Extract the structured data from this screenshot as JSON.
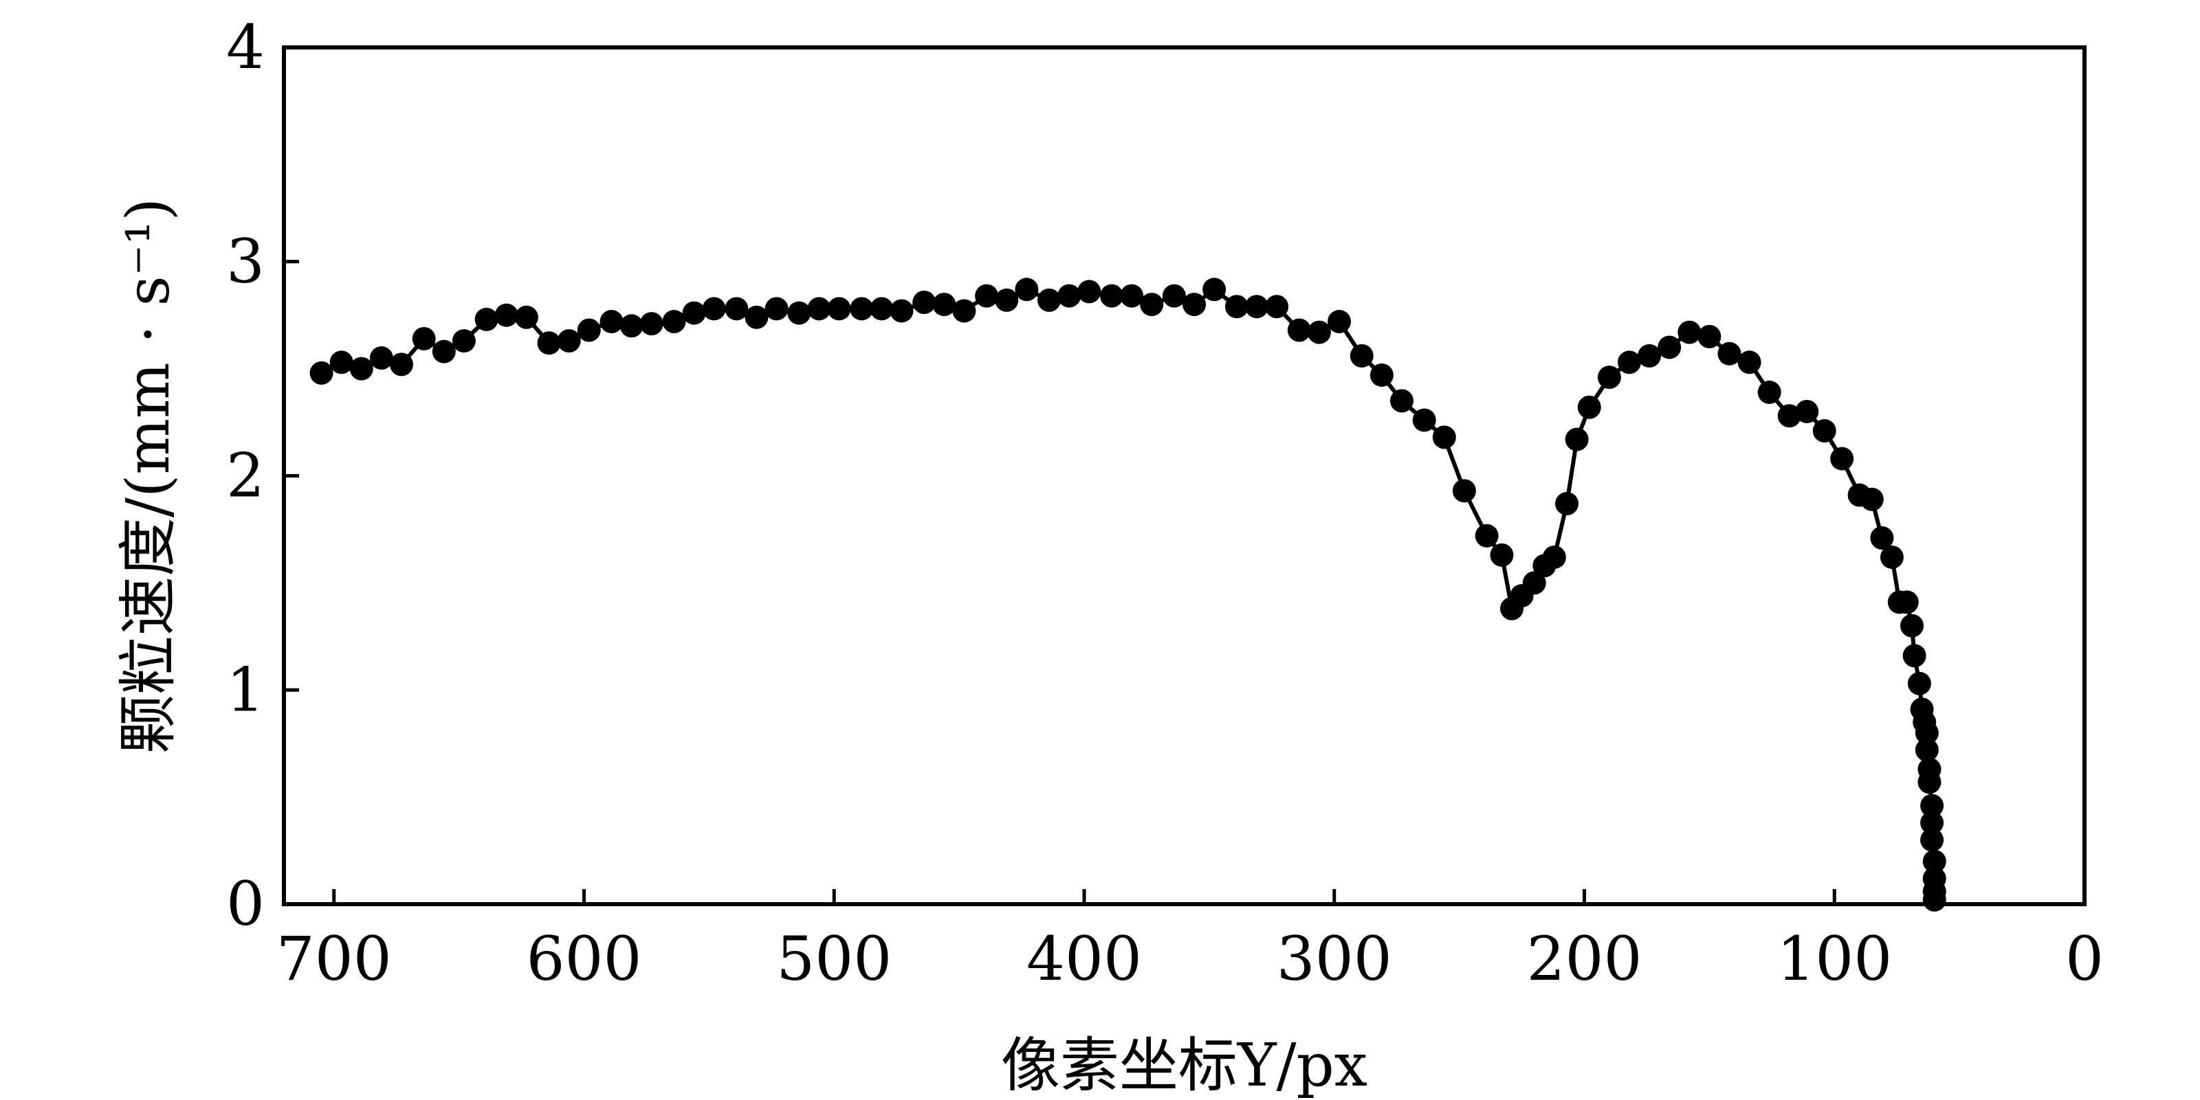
{
  "chart_data": {
    "type": "scatter",
    "xlabel": "像素坐标Y/px",
    "ylabel": "颗粒速度/(mm · s⁻¹)",
    "xlim": [
      720,
      0
    ],
    "ylim": [
      0,
      4
    ],
    "x_reversed": true,
    "x_ticks": [
      700,
      600,
      500,
      400,
      300,
      200,
      100,
      0
    ],
    "y_ticks": [
      0,
      1,
      2,
      3,
      4
    ],
    "grid": false,
    "legend": "none",
    "marker_color": "#000000",
    "line_color": "#000000",
    "series": [
      {
        "points": [
          [
            705,
            2.48
          ],
          [
            697,
            2.53
          ],
          [
            689,
            2.5
          ],
          [
            681,
            2.55
          ],
          [
            673,
            2.52
          ],
          [
            664,
            2.64
          ],
          [
            656,
            2.58
          ],
          [
            648,
            2.63
          ],
          [
            639,
            2.73
          ],
          [
            631,
            2.75
          ],
          [
            623,
            2.74
          ],
          [
            614,
            2.62
          ],
          [
            606,
            2.63
          ],
          [
            598,
            2.68
          ],
          [
            589,
            2.72
          ],
          [
            581,
            2.7
          ],
          [
            573,
            2.71
          ],
          [
            564,
            2.72
          ],
          [
            556,
            2.76
          ],
          [
            548,
            2.78
          ],
          [
            539,
            2.78
          ],
          [
            531,
            2.74
          ],
          [
            523,
            2.78
          ],
          [
            514,
            2.76
          ],
          [
            506,
            2.78
          ],
          [
            498,
            2.78
          ],
          [
            489,
            2.78
          ],
          [
            481,
            2.78
          ],
          [
            473,
            2.77
          ],
          [
            464,
            2.81
          ],
          [
            456,
            2.8
          ],
          [
            448,
            2.77
          ],
          [
            439,
            2.84
          ],
          [
            431,
            2.82
          ],
          [
            423,
            2.87
          ],
          [
            414,
            2.82
          ],
          [
            406,
            2.84
          ],
          [
            398,
            2.86
          ],
          [
            389,
            2.84
          ],
          [
            381,
            2.84
          ],
          [
            373,
            2.8
          ],
          [
            364,
            2.84
          ],
          [
            356,
            2.8
          ],
          [
            348,
            2.87
          ],
          [
            339,
            2.79
          ],
          [
            331,
            2.79
          ],
          [
            323,
            2.79
          ],
          [
            314,
            2.68
          ],
          [
            306,
            2.67
          ],
          [
            298,
            2.72
          ],
          [
            289,
            2.56
          ],
          [
            281,
            2.47
          ],
          [
            273,
            2.35
          ],
          [
            264,
            2.26
          ],
          [
            256,
            2.18
          ],
          [
            248,
            1.93
          ],
          [
            239,
            1.72
          ],
          [
            233,
            1.63
          ],
          [
            229,
            1.38
          ],
          [
            225,
            1.44
          ],
          [
            220,
            1.5
          ],
          [
            216,
            1.58
          ],
          [
            212,
            1.62
          ],
          [
            207,
            1.87
          ],
          [
            203,
            2.17
          ],
          [
            198,
            2.32
          ],
          [
            190,
            2.46
          ],
          [
            182,
            2.53
          ],
          [
            174,
            2.56
          ],
          [
            166,
            2.6
          ],
          [
            158,
            2.67
          ],
          [
            150,
            2.65
          ],
          [
            142,
            2.57
          ],
          [
            134,
            2.53
          ],
          [
            126,
            2.39
          ],
          [
            118,
            2.28
          ],
          [
            111,
            2.3
          ],
          [
            104,
            2.21
          ],
          [
            97,
            2.08
          ],
          [
            90,
            1.91
          ],
          [
            85,
            1.89
          ],
          [
            81,
            1.71
          ],
          [
            77,
            1.62
          ],
          [
            74,
            1.41
          ],
          [
            71,
            1.41
          ],
          [
            69,
            1.3
          ],
          [
            68,
            1.16
          ],
          [
            66,
            1.03
          ],
          [
            65,
            0.91
          ],
          [
            64,
            0.85
          ],
          [
            63,
            0.8
          ],
          [
            63,
            0.72
          ],
          [
            62,
            0.63
          ],
          [
            62,
            0.57
          ],
          [
            61,
            0.46
          ],
          [
            61,
            0.38
          ],
          [
            61,
            0.3
          ],
          [
            60,
            0.2
          ],
          [
            60,
            0.12
          ],
          [
            60,
            0.06
          ],
          [
            60,
            0.02
          ]
        ]
      }
    ]
  }
}
